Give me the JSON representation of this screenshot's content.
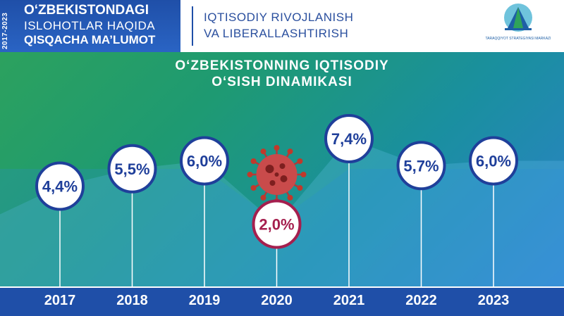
{
  "header": {
    "year_range": "2017-2023",
    "headline_1": "O‘ZBEKISTONDAGI",
    "headline_2": "ISLOHOTLAR HAQIDA",
    "headline_3": "QISQACHA MA’LUMOT",
    "topic_1": "IQTISODIY RIVOJLANISH",
    "topic_2": "VA LIBERALLASHTIRISH",
    "logo_text": "TARAQQIYOT STRATEGIYASI MARKAZI"
  },
  "colors": {
    "header_blue": "#1f4fa8",
    "circle_border": "#1f3f9a",
    "highlight_border": "#a51f4e",
    "year_band": "#1f4fa8"
  },
  "chart_data": {
    "type": "line",
    "title": "O‘ZBEKISTONNING IQTISODIY O‘SISH DINAMIKASI",
    "categories": [
      "2017",
      "2018",
      "2019",
      "2020",
      "2021",
      "2022",
      "2023"
    ],
    "values": [
      4.4,
      5.5,
      6.0,
      2.0,
      7.4,
      5.7,
      6.0
    ],
    "labels": [
      "4,4%",
      "5,5%",
      "6,0%",
      "2,0%",
      "7,4%",
      "5,7%",
      "6,0%"
    ],
    "highlight": [
      "2020"
    ],
    "annotation_icon": "virus-icon",
    "grid": false,
    "legend": "none"
  }
}
